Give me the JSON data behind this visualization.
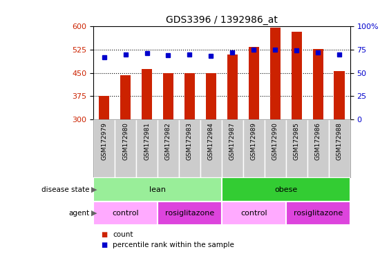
{
  "title": "GDS3396 / 1392986_at",
  "samples": [
    "GSM172979",
    "GSM172980",
    "GSM172981",
    "GSM172982",
    "GSM172983",
    "GSM172984",
    "GSM172987",
    "GSM172989",
    "GSM172990",
    "GSM172985",
    "GSM172986",
    "GSM172988"
  ],
  "counts": [
    375,
    442,
    462,
    448,
    449,
    448,
    510,
    533,
    597,
    584,
    527,
    455
  ],
  "percentile_ranks": [
    67,
    70,
    71,
    69,
    70,
    68,
    72,
    75,
    75,
    74,
    72,
    70
  ],
  "ylim_left": [
    300,
    600
  ],
  "ylim_right": [
    0,
    100
  ],
  "yticks_left": [
    300,
    375,
    450,
    525,
    600
  ],
  "yticks_right": [
    0,
    25,
    50,
    75,
    100
  ],
  "bar_color": "#cc2200",
  "dot_color": "#0000cc",
  "bar_width": 0.5,
  "grid_yticks": [
    375,
    450,
    525
  ],
  "disease_state_groups": [
    {
      "label": "lean",
      "start": 0,
      "end": 6,
      "color": "#99ee99"
    },
    {
      "label": "obese",
      "start": 6,
      "end": 12,
      "color": "#33cc33"
    }
  ],
  "agent_groups": [
    {
      "label": "control",
      "start": 0,
      "end": 3,
      "color": "#ffaaff"
    },
    {
      "label": "rosiglitazone",
      "start": 3,
      "end": 6,
      "color": "#dd44dd"
    },
    {
      "label": "control",
      "start": 6,
      "end": 9,
      "color": "#ffaaff"
    },
    {
      "label": "rosiglitazone",
      "start": 9,
      "end": 12,
      "color": "#dd44dd"
    }
  ],
  "xtick_bg_color": "#cccccc",
  "background_color": "#ffffff"
}
